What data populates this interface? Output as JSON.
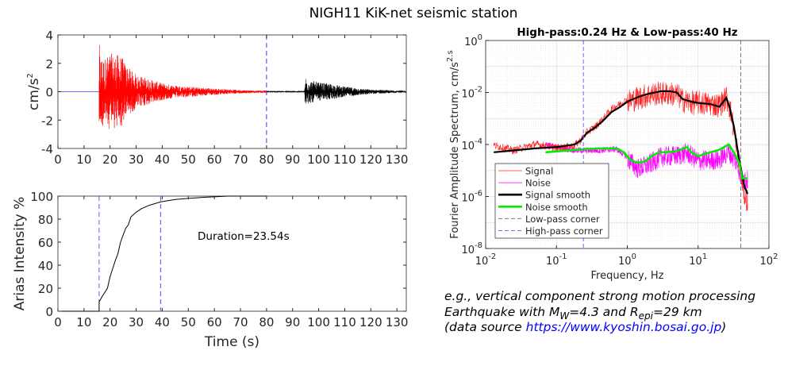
{
  "title": "NIGH11 KiK-net seismic station",
  "caption": {
    "line1": "e.g., vertical component strong motion processing",
    "line2_a": "Earthquake with M",
    "line2_sub1": "W",
    "line2_b": "=4.3 and R",
    "line2_sub2": "epi",
    "line2_c": "=29 km",
    "line3_a": "(data source ",
    "line3_link": "https://www.kyoshin.bosai.go.jp",
    "line3_b": ")",
    "link_color": "#0000ff"
  },
  "chart_data": [
    {
      "type": "line",
      "name": "acceleration-time-history",
      "xlabel": "",
      "ylabel": "cm/s^2",
      "xlim": [
        0,
        133.6
      ],
      "ylim": [
        -4,
        4
      ],
      "x_ticks": [
        0,
        10,
        20,
        30,
        40,
        50,
        60,
        70,
        80,
        90,
        100,
        110,
        120,
        130
      ],
      "y_ticks": [
        -4,
        -2,
        0,
        2,
        4
      ],
      "grid": false,
      "colors": {
        "pre_event": "#6b6bff",
        "signal": "#ff0000",
        "noise_window": "#000000",
        "window_marker": "#3333ff"
      },
      "pre_event_end": 15.8,
      "window_end_marker": 80,
      "signal_envelope": [
        [
          15.8,
          3.6
        ],
        [
          16.2,
          2.6
        ],
        [
          18,
          2.4
        ],
        [
          20,
          2.7
        ],
        [
          24,
          2.6
        ],
        [
          27,
          1.7
        ],
        [
          30,
          1.2
        ],
        [
          35,
          0.9
        ],
        [
          40,
          0.6
        ],
        [
          45,
          0.45
        ],
        [
          55,
          0.3
        ],
        [
          60,
          0.22
        ],
        [
          70,
          0.12
        ],
        [
          80,
          0.08
        ]
      ],
      "noise_envelope": [
        [
          80,
          0.06
        ],
        [
          94.6,
          0.06
        ],
        [
          94.8,
          1.1
        ],
        [
          97,
          0.8
        ],
        [
          100,
          0.65
        ],
        [
          105,
          0.55
        ],
        [
          110,
          0.35
        ],
        [
          120,
          0.15
        ],
        [
          133.6,
          0.07
        ]
      ]
    },
    {
      "type": "line",
      "name": "arias-intensity",
      "xlabel": "Time (s)",
      "ylabel": "Arias Intensity %",
      "xlim": [
        0,
        133.6
      ],
      "ylim": [
        0,
        100
      ],
      "x_ticks": [
        0,
        10,
        20,
        30,
        40,
        50,
        60,
        70,
        80,
        90,
        100,
        110,
        120,
        130
      ],
      "y_ticks": [
        0,
        20,
        40,
        60,
        80,
        100
      ],
      "grid": false,
      "annotation": "Duration=23.54s",
      "markers": [
        15.8,
        39.4
      ],
      "x": [
        0,
        15.8,
        15.8,
        17,
        19,
        20,
        21,
        22,
        23,
        24,
        25,
        26,
        27,
        28,
        30,
        32,
        35,
        39.4,
        45,
        50,
        55,
        60,
        65,
        80
      ],
      "y": [
        0,
        0,
        8,
        13,
        20,
        30,
        37,
        44,
        50,
        60,
        66,
        72,
        75,
        82,
        86,
        89,
        92,
        95,
        97,
        98,
        98.8,
        99.4,
        100,
        100
      ]
    },
    {
      "type": "line",
      "name": "fourier-amplitude-spectrum",
      "title": "High-pass:0.24 Hz & Low-pass:40 Hz",
      "xlabel": "Frequency, Hz",
      "ylabel": "Fourier Amplitude Spectrum, cm/s^2.s",
      "xscale": "log",
      "yscale": "log",
      "xlim": [
        0.01,
        100
      ],
      "ylim": [
        1e-08,
        1
      ],
      "x_tick_labels": [
        "10^-2",
        "10^-1",
        "10^0",
        "10^1",
        "10^2"
      ],
      "y_tick_labels": [
        "10^-8",
        "10^-6",
        "10^-4",
        "10^-2",
        "10^0"
      ],
      "grid": true,
      "legend_position": "lower-left",
      "high_pass_corner": 0.24,
      "low_pass_corner": 40,
      "series": [
        {
          "name": "Signal",
          "color": "#ff2020",
          "style": "thin",
          "x": [
            0.013,
            0.025,
            0.05,
            0.1,
            0.15,
            0.18,
            0.22,
            0.27,
            0.35,
            0.45,
            0.6,
            0.8,
            1.0,
            1.5,
            2,
            2.5,
            3,
            4,
            5,
            6,
            8,
            10,
            15,
            20,
            25,
            28,
            32,
            36,
            40,
            45,
            50
          ],
          "y": [
            -4.0,
            -4.2,
            -3.95,
            -4.1,
            -4.05,
            -4.0,
            -3.8,
            -3.5,
            -3.3,
            -3.0,
            -2.6,
            -2.4,
            -2.25,
            -2.1,
            -2.0,
            -1.95,
            -1.95,
            -1.95,
            -2.0,
            -2.2,
            -2.3,
            -2.3,
            -2.35,
            -2.4,
            -2.1,
            -2.5,
            -3.3,
            -4.2,
            -5.0,
            -5.8,
            -6.1
          ]
        },
        {
          "name": "Noise",
          "color": "#ff00ff",
          "style": "thin",
          "x": [
            0.07,
            0.1,
            0.2,
            0.4,
            0.7,
            1.0,
            1.4,
            2,
            3,
            5,
            7,
            10,
            20,
            27,
            35,
            42,
            50
          ],
          "y": [
            -3.95,
            -4.1,
            -4.2,
            -4.2,
            -4.15,
            -4.45,
            -4.85,
            -4.7,
            -4.4,
            -4.35,
            -4.25,
            -4.55,
            -4.5,
            -4.2,
            -4.6,
            -5.3,
            -5.3
          ]
        },
        {
          "name": "Signal smooth",
          "color": "#000000",
          "style": "thick",
          "x": [
            0.013,
            0.05,
            0.1,
            0.18,
            0.22,
            0.27,
            0.35,
            0.45,
            0.6,
            0.8,
            1.0,
            1.5,
            2,
            3,
            4,
            5,
            6,
            8,
            10,
            15,
            20,
            25,
            28,
            32,
            36,
            40,
            45,
            50
          ],
          "y": [
            -4.3,
            -4.15,
            -4.1,
            -4.0,
            -3.85,
            -3.55,
            -3.35,
            -3.1,
            -2.75,
            -2.55,
            -2.35,
            -2.15,
            -2.05,
            -1.95,
            -1.95,
            -2.0,
            -2.25,
            -2.35,
            -2.4,
            -2.45,
            -2.55,
            -2.2,
            -2.6,
            -3.3,
            -4.2,
            -4.9,
            -5.6,
            -5.9
          ]
        },
        {
          "name": "Noise smooth",
          "color": "#00ee00",
          "style": "thick",
          "x": [
            0.07,
            0.2,
            0.4,
            0.7,
            0.9,
            1.1,
            1.4,
            1.8,
            2.2,
            2.8,
            3.5,
            5,
            7,
            8,
            10,
            15,
            20,
            27,
            32,
            38,
            42,
            50
          ],
          "y": [
            -4.3,
            -4.2,
            -4.15,
            -4.15,
            -4.3,
            -4.6,
            -4.7,
            -4.65,
            -4.45,
            -4.3,
            -4.3,
            -4.25,
            -4.1,
            -4.3,
            -4.45,
            -4.3,
            -4.2,
            -4.0,
            -4.3,
            -4.7,
            -5.3,
            -5.3
          ]
        },
        {
          "name": "Low-pass corner",
          "color": "#777777",
          "style": "dashed"
        },
        {
          "name": "High-pass corner",
          "color": "#6b6bff",
          "style": "dashed"
        }
      ]
    }
  ]
}
